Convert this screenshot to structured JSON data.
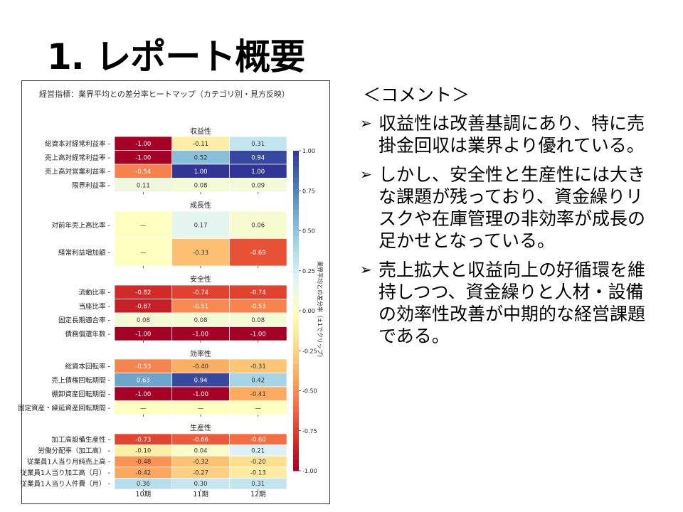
{
  "slide_title": "1. レポート概要",
  "comments": {
    "heading": "＜コメント＞",
    "bullet_icon": "arrow-bullet-icon",
    "items": [
      "収益性は改善基調にあり、特に売掛金回収は業界より優れている。",
      "しかし、安全性と生産性には大きな課題が残っており、資金繰りリスクや在庫管理の非効率が成長の足かせとなっている。",
      "売上拡大と収益向上の好循環を維持しつつ、資金繰りと人材・設備の効率性改善が中期的な経営課題である。"
    ]
  },
  "chart_data": {
    "type": "heatmap",
    "title": "経営指標：業界平均との差分率ヒートマップ（カテゴリ別・見方反映）",
    "categories": [
      "10期",
      "11期",
      "12期"
    ],
    "missing_label": "—",
    "colormap": "RdYlBu",
    "colorbar": {
      "label": "業界平均との差分率（±1でクリップ）",
      "range": [
        -1,
        1
      ],
      "ticks": [
        "1.00",
        "0.75",
        "0.50",
        "0.25",
        "0.00",
        "-0.25",
        "-0.50",
        "-0.75",
        "-1.00"
      ]
    },
    "groups": [
      {
        "name": "収益性",
        "rows": [
          {
            "label": "総資本対経常利益率",
            "values": [
              -1.0,
              -0.11,
              0.31
            ]
          },
          {
            "label": "売上高対経常利益率",
            "values": [
              -1.0,
              0.52,
              0.94
            ]
          },
          {
            "label": "売上高対営業利益率",
            "values": [
              -0.54,
              1.0,
              1.0
            ]
          },
          {
            "label": "限界利益率",
            "values": [
              0.11,
              0.08,
              0.09
            ]
          }
        ]
      },
      {
        "name": "成長性",
        "rows": [
          {
            "label": "対前年売上高比率",
            "values": [
              null,
              0.17,
              0.06
            ]
          },
          {
            "label": "経常利益増加額",
            "values": [
              null,
              -0.33,
              -0.69
            ]
          }
        ]
      },
      {
        "name": "安全性",
        "rows": [
          {
            "label": "流動比率",
            "values": [
              -0.82,
              -0.74,
              -0.74
            ]
          },
          {
            "label": "当座比率",
            "values": [
              -0.87,
              -0.51,
              -0.53
            ]
          },
          {
            "label": "固定長期適合率",
            "values": [
              0.08,
              0.08,
              0.08
            ]
          },
          {
            "label": "債務償還年数",
            "values": [
              -1.0,
              -1.0,
              -1.0
            ]
          }
        ]
      },
      {
        "name": "効率性",
        "rows": [
          {
            "label": "総資本回転率",
            "values": [
              -0.53,
              -0.4,
              -0.31
            ]
          },
          {
            "label": "売上債権回転期間",
            "values": [
              0.63,
              0.94,
              0.42
            ]
          },
          {
            "label": "棚卸資産回転期間",
            "values": [
              -1.0,
              -1.0,
              -0.41
            ]
          },
          {
            "label": "固定資産・繰延資産回転期間",
            "values": [
              null,
              null,
              null
            ]
          }
        ]
      },
      {
        "name": "生産性",
        "rows": [
          {
            "label": "加工高設備生産性",
            "values": [
              -0.73,
              -0.66,
              -0.6
            ]
          },
          {
            "label": "労働分配率（加工高）",
            "values": [
              -0.1,
              0.04,
              0.21
            ]
          },
          {
            "label": "従業員1人当り月純売上高",
            "values": [
              -0.48,
              -0.32,
              -0.2
            ]
          },
          {
            "label": "従業員1人当り加工高（月）",
            "values": [
              -0.42,
              -0.27,
              -0.13
            ]
          },
          {
            "label": "従業員1人当り人件費（月）",
            "values": [
              0.36,
              0.3,
              0.31
            ]
          }
        ]
      }
    ]
  }
}
